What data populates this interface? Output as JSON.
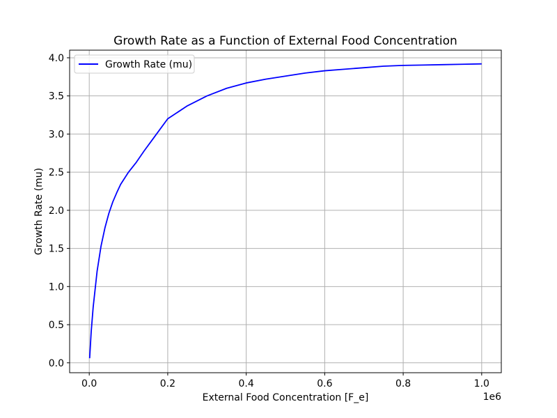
{
  "chart_data": {
    "type": "line",
    "title": "Growth Rate as a Function of External Food Concentration",
    "xlabel": "External Food Concentration [F_e]",
    "ylabel": "Growth Rate (mu)",
    "x_offset_label": "1e6",
    "xlim": [
      -50000,
      1050000
    ],
    "ylim": [
      -0.13,
      4.1
    ],
    "x_ticks": [
      0,
      200000,
      400000,
      600000,
      800000,
      1000000
    ],
    "x_tick_labels": [
      "0.0",
      "0.2",
      "0.4",
      "0.6",
      "0.8",
      "1.0"
    ],
    "y_ticks": [
      0.0,
      0.5,
      1.0,
      1.5,
      2.0,
      2.5,
      3.0,
      3.5,
      4.0
    ],
    "y_tick_labels": [
      "0.0",
      "0.5",
      "1.0",
      "1.5",
      "2.0",
      "2.5",
      "3.0",
      "3.5",
      "4.0"
    ],
    "grid": true,
    "legend": "top-left",
    "series": [
      {
        "name": "Growth Rate (mu)",
        "color": "#0000ff",
        "x": [
          1000,
          5000,
          10000,
          20000,
          30000,
          40000,
          50000,
          60000,
          70000,
          80000,
          90000,
          100000,
          120000,
          140000,
          160000,
          180000,
          200000,
          250000,
          300000,
          350000,
          400000,
          450000,
          500000,
          550000,
          600000,
          650000,
          700000,
          750000,
          800000,
          850000,
          900000,
          950000,
          1000000
        ],
        "y": [
          0.06,
          0.41,
          0.73,
          1.2,
          1.53,
          1.77,
          1.96,
          2.11,
          2.23,
          2.34,
          2.42,
          2.5,
          2.63,
          2.78,
          2.92,
          3.06,
          3.2,
          3.37,
          3.5,
          3.6,
          3.67,
          3.72,
          3.76,
          3.8,
          3.83,
          3.85,
          3.87,
          3.89,
          3.9,
          3.905,
          3.91,
          3.915,
          3.92
        ]
      }
    ]
  }
}
